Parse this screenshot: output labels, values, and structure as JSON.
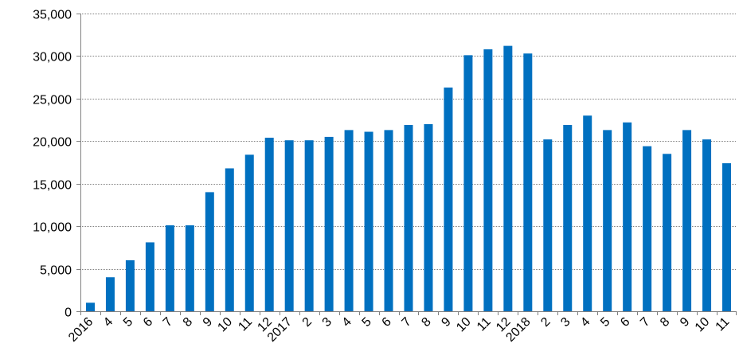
{
  "chart_data": {
    "type": "bar",
    "title": "",
    "xlabel": "",
    "ylabel": "",
    "ylim": [
      0,
      35000
    ],
    "y_ticks": [
      0,
      5000,
      10000,
      15000,
      20000,
      25000,
      30000,
      35000
    ],
    "y_tick_labels": [
      "0",
      "5,000",
      "10,000",
      "15,000",
      "20,000",
      "25,000",
      "30,000",
      "35,000"
    ],
    "grid": true,
    "legend": "none",
    "bar_color": "#0070C0",
    "categories": [
      "2016",
      "4",
      "5",
      "6",
      "7",
      "8",
      "9",
      "10",
      "11",
      "12",
      "2017",
      "2",
      "3",
      "4",
      "5",
      "6",
      "7",
      "8",
      "9",
      "10",
      "11",
      "12",
      "2018",
      "2",
      "3",
      "4",
      "5",
      "6",
      "7",
      "8",
      "9",
      "10",
      "11"
    ],
    "values": [
      1000,
      4000,
      6000,
      8100,
      10100,
      10100,
      14000,
      16800,
      18400,
      20400,
      20100,
      20100,
      20500,
      21300,
      21100,
      21300,
      21900,
      22000,
      26300,
      30100,
      30800,
      31200,
      30300,
      20200,
      21900,
      23000,
      21300,
      22200,
      19400,
      18500,
      21300,
      20200,
      17400
    ]
  }
}
